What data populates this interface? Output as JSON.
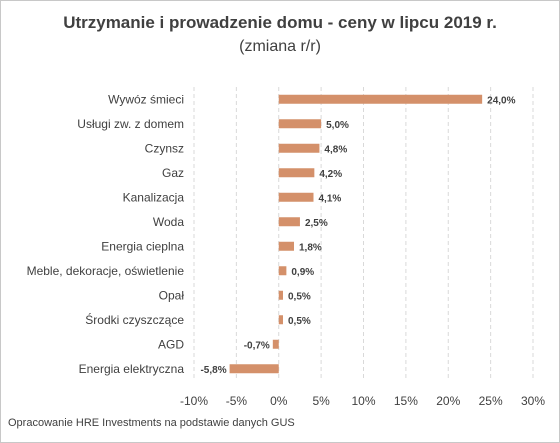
{
  "chart_data": {
    "type": "bar",
    "orientation": "horizontal",
    "title": "Utrzymanie i prowadzenie domu - ceny w lipcu 2019 r.",
    "subtitle": "(zmiana r/r)",
    "categories": [
      "Wywóz śmieci",
      "Usługi zw. z domem",
      "Czynsz",
      "Gaz",
      "Kanalizacja",
      "Woda",
      "Energia cieplna",
      "Meble, dekoracje, oświetlenie",
      "Opał",
      "Środki czyszczące",
      "AGD",
      "Energia elektryczna"
    ],
    "values": [
      24.0,
      5.0,
      4.8,
      4.2,
      4.1,
      2.5,
      1.8,
      0.9,
      0.5,
      0.5,
      -0.7,
      -5.8
    ],
    "data_labels": [
      "24,0%",
      "5,0%",
      "4,8%",
      "4,2%",
      "4,1%",
      "2,5%",
      "1,8%",
      "0,9%",
      "0,5%",
      "0,5%",
      "-0,7%",
      "-5,8%"
    ],
    "xlim": [
      -10,
      30
    ],
    "x_ticks": [
      -10,
      -5,
      0,
      5,
      10,
      15,
      20,
      25,
      30
    ],
    "x_tick_labels": [
      "-10%",
      "-5%",
      "0%",
      "5%",
      "10%",
      "15%",
      "20%",
      "25%",
      "30%"
    ],
    "xlabel": "",
    "ylabel": "",
    "grid": "vertical-dashed",
    "legend": "none",
    "bar_color": "#D4906A",
    "grid_color": "#D9D9D9",
    "text_color": "#404040"
  },
  "source_note": "Opracowanie HRE Investments na podstawie danych GUS"
}
